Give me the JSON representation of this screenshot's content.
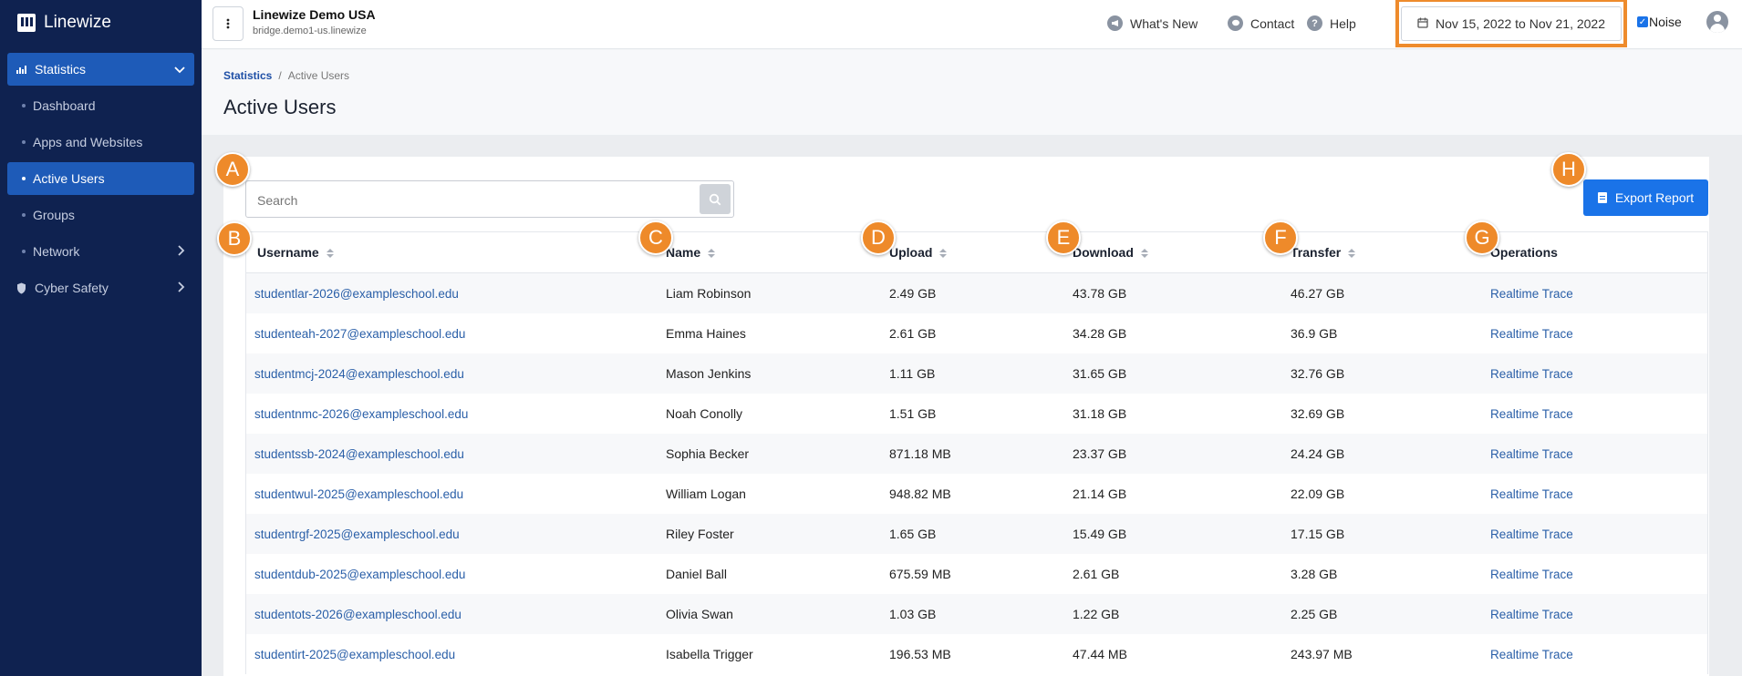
{
  "brand": {
    "name": "Linewize"
  },
  "sidebar": {
    "section": {
      "label": "Statistics"
    },
    "items": [
      {
        "label": "Dashboard"
      },
      {
        "label": "Apps and Websites"
      },
      {
        "label": "Active Users"
      },
      {
        "label": "Groups"
      },
      {
        "label": "Network"
      }
    ],
    "cyber_safety": {
      "label": "Cyber Safety"
    }
  },
  "header": {
    "org_name": "Linewize Demo USA",
    "org_host": "bridge.demo1-us.linewize",
    "whats_new": "What's New",
    "contact": "Contact",
    "help": "Help",
    "date_range": "Nov 15, 2022 to Nov 21, 2022",
    "noise_label": "Noise"
  },
  "breadcrumb": {
    "parent": "Statistics",
    "current": "Active Users"
  },
  "page": {
    "title": "Active Users"
  },
  "search": {
    "placeholder": "Search"
  },
  "export": {
    "label": "Export Report"
  },
  "table": {
    "headers": [
      "Username",
      "Name",
      "Upload",
      "Download",
      "Transfer",
      "Operations"
    ],
    "rows": [
      [
        "studentlar-2026@exampleschool.edu",
        "Liam Robinson",
        "2.49 GB",
        "43.78 GB",
        "46.27 GB",
        "Realtime Trace"
      ],
      [
        "studenteah-2027@exampleschool.edu",
        "Emma Haines",
        "2.61 GB",
        "34.28 GB",
        "36.9 GB",
        "Realtime Trace"
      ],
      [
        "studentmcj-2024@exampleschool.edu",
        "Mason Jenkins",
        "1.11 GB",
        "31.65 GB",
        "32.76 GB",
        "Realtime Trace"
      ],
      [
        "studentnmc-2026@exampleschool.edu",
        "Noah Conolly",
        "1.51 GB",
        "31.18 GB",
        "32.69 GB",
        "Realtime Trace"
      ],
      [
        "studentssb-2024@exampleschool.edu",
        "Sophia Becker",
        "871.18 MB",
        "23.37 GB",
        "24.24 GB",
        "Realtime Trace"
      ],
      [
        "studentwul-2025@exampleschool.edu",
        "William Logan",
        "948.82 MB",
        "21.14 GB",
        "22.09 GB",
        "Realtime Trace"
      ],
      [
        "studentrgf-2025@exampleschool.edu",
        "Riley Foster",
        "1.65 GB",
        "15.49 GB",
        "17.15 GB",
        "Realtime Trace"
      ],
      [
        "studentdub-2025@exampleschool.edu",
        "Daniel Ball",
        "675.59 MB",
        "2.61 GB",
        "3.28 GB",
        "Realtime Trace"
      ],
      [
        "studentots-2026@exampleschool.edu",
        "Olivia Swan",
        "1.03 GB",
        "1.22 GB",
        "2.25 GB",
        "Realtime Trace"
      ],
      [
        "studentirt-2025@exampleschool.edu",
        "Isabella Trigger",
        "196.53 MB",
        "47.44 MB",
        "243.97 MB",
        "Realtime Trace"
      ]
    ]
  },
  "callouts": [
    "A",
    "B",
    "C",
    "D",
    "E",
    "F",
    "G",
    "H"
  ],
  "colors": {
    "sidebar": "#0f2250",
    "accent": "#1a73e8",
    "active_nav": "#1e5bb8",
    "callout": "#ee8a2a",
    "highlight": "#ee8b2c"
  }
}
